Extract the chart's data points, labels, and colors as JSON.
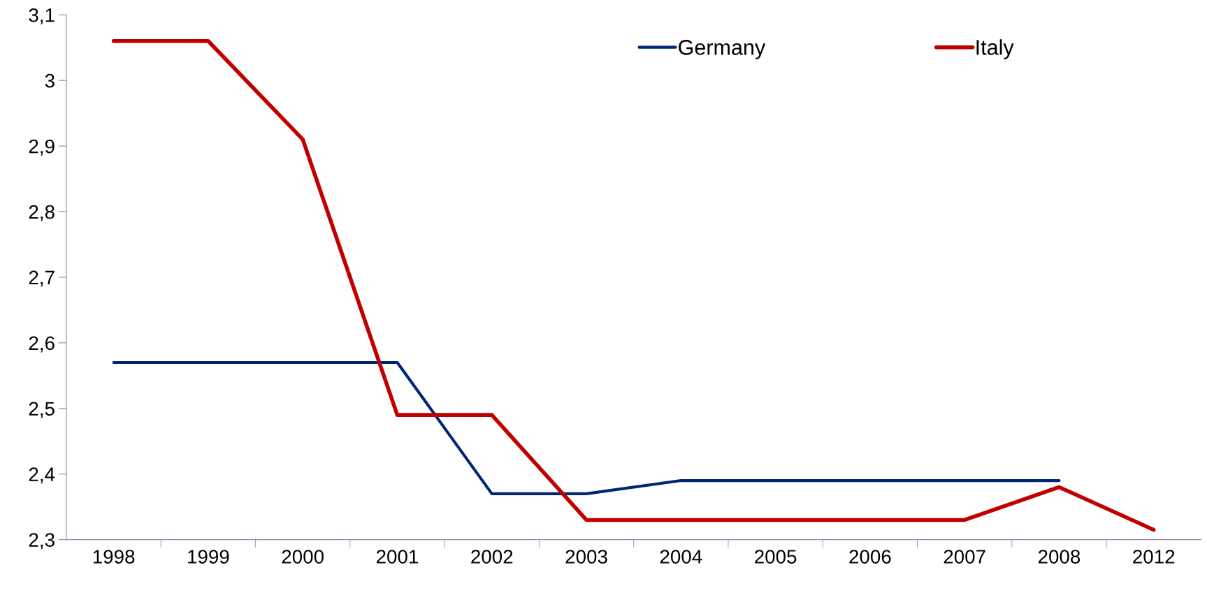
{
  "chart_data": {
    "type": "line",
    "categories": [
      "1998",
      "1999",
      "2000",
      "2001",
      "2002",
      "2003",
      "2004",
      "2005",
      "2006",
      "2007",
      "2008",
      "2012"
    ],
    "series": [
      {
        "name": "Germany",
        "color": "#002776",
        "values": [
          2.57,
          2.57,
          2.57,
          2.57,
          2.37,
          2.37,
          2.39,
          2.39,
          2.39,
          2.39,
          2.39,
          null
        ]
      },
      {
        "name": "Italy",
        "color": "#c00000",
        "values": [
          3.06,
          3.06,
          2.91,
          2.49,
          2.49,
          2.33,
          2.33,
          2.33,
          2.33,
          2.33,
          2.38,
          2.315
        ]
      }
    ],
    "ylim": [
      2.3,
      3.1
    ],
    "yticks": [
      {
        "value": 2.3,
        "label": "2,3"
      },
      {
        "value": 2.4,
        "label": "2,4"
      },
      {
        "value": 2.5,
        "label": "2,5"
      },
      {
        "value": 2.6,
        "label": "2,6"
      },
      {
        "value": 2.7,
        "label": "2,7"
      },
      {
        "value": 2.8,
        "label": "2,8"
      },
      {
        "value": 2.9,
        "label": "2,9"
      },
      {
        "value": 3,
        "label": "3"
      },
      {
        "value": 3.1,
        "label": "3,1"
      }
    ],
    "grid": false,
    "legend": "top",
    "marker": "none",
    "line_style": "solid"
  }
}
